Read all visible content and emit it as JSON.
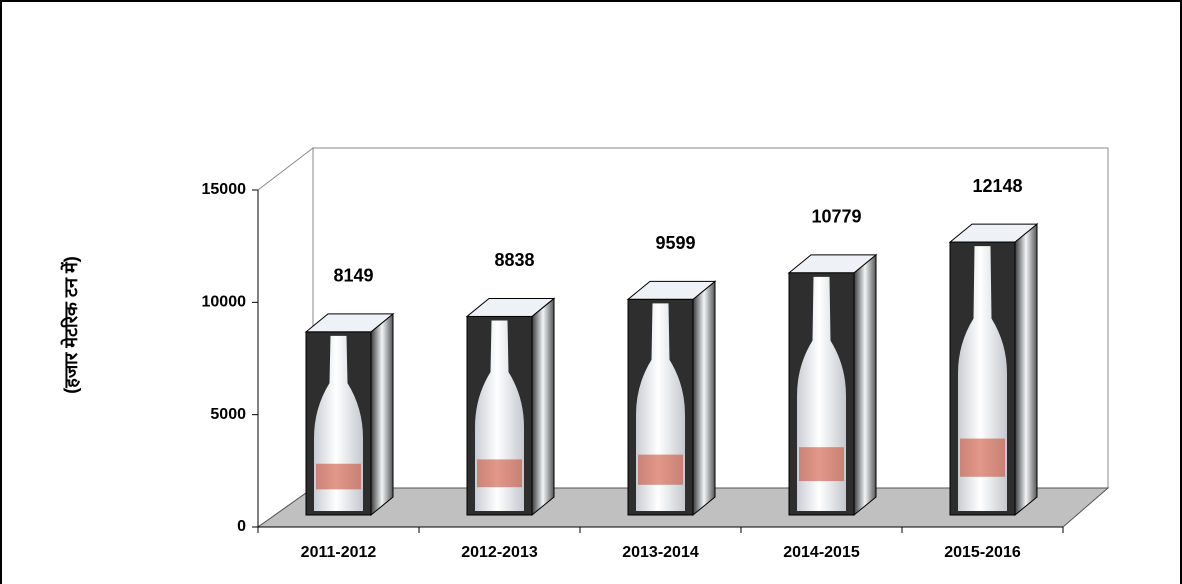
{
  "chart_data": {
    "type": "bar",
    "y_label": "(हजार मेटरिक टन में)",
    "categories": [
      "2011-2012",
      "2012-2013",
      "2013-2014",
      "2014-2015",
      "2015-2016"
    ],
    "values": [
      8149,
      8838,
      9599,
      10779,
      12148
    ],
    "ylim": [
      0,
      15000
    ],
    "yticks": [
      0,
      5000,
      10000,
      15000
    ]
  }
}
